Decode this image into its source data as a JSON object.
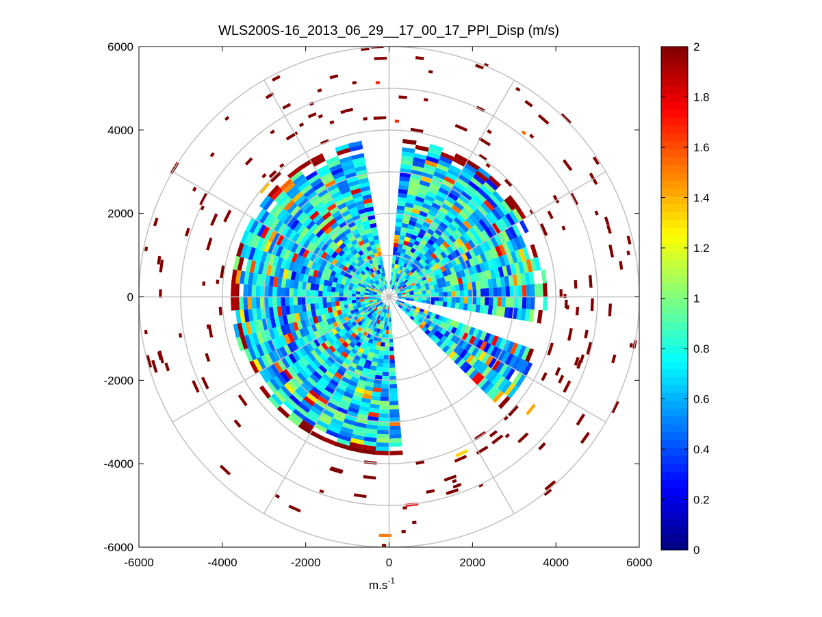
{
  "chart_data": {
    "type": "heatmap",
    "subtype": "polar-ppi",
    "title": "WLS200S-16_2013_06_29__17_00_17_PPI_Disp (m/s)",
    "xlabel": "m.s",
    "xlabel_superscript": "-1",
    "ylabel": "",
    "xlim": [
      -6000,
      6000
    ],
    "ylim": [
      -6000,
      6000
    ],
    "xticks": [
      "-6000",
      "-4000",
      "-2000",
      "0",
      "2000",
      "4000",
      "6000"
    ],
    "yticks": [
      "6000",
      "4000",
      "2000",
      "0",
      "-2000",
      "-4000",
      "-6000"
    ],
    "grid": true,
    "range_rings": [
      1000,
      2000,
      3000,
      4000,
      5000,
      6000
    ],
    "spoke_angles_deg": [
      0,
      30,
      60,
      90,
      120,
      150,
      180,
      210,
      240,
      270,
      300,
      330
    ],
    "dense_max_range": 3800,
    "colorbar": {
      "colormap": "jet",
      "min": 0,
      "max": 2,
      "ticks": [
        "0",
        "0.2",
        "0.4",
        "0.6",
        "0.8",
        "1",
        "1.2",
        "1.4",
        "1.6",
        "1.8",
        "2"
      ]
    },
    "data_gaps_azimuth_deg": [
      [
        -10,
        5
      ],
      [
        100,
        112
      ],
      [
        135,
        175
      ]
    ],
    "outer_returns_value": 2.0,
    "typical_inner_value": 0.75
  }
}
